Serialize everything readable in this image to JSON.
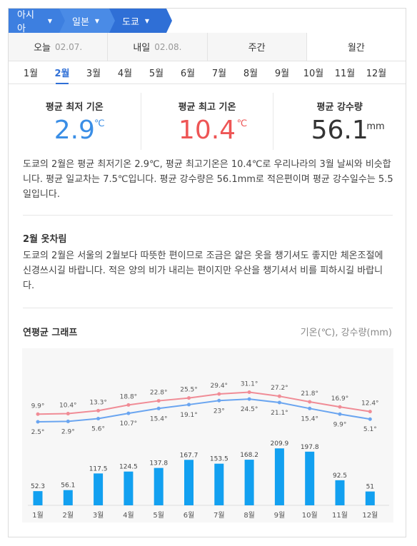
{
  "breadcrumb": [
    {
      "label": "아시아"
    },
    {
      "label": "일본"
    },
    {
      "label": "도쿄"
    }
  ],
  "day_tabs": [
    {
      "label": "오늘",
      "date": "02.07."
    },
    {
      "label": "내일",
      "date": "02.08."
    },
    {
      "label": "주간",
      "date": ""
    },
    {
      "label": "월간",
      "date": ""
    }
  ],
  "months": [
    "1월",
    "2월",
    "3월",
    "4월",
    "5월",
    "6월",
    "7월",
    "8월",
    "9월",
    "10월",
    "11월",
    "12월"
  ],
  "selected_month": "2월",
  "stats": {
    "min": {
      "label": "평균 최저 기온",
      "value": "2.9",
      "unit": "℃"
    },
    "max": {
      "label": "평균 최고 기온",
      "value": "10.4",
      "unit": "℃"
    },
    "rain": {
      "label": "평균 강수량",
      "value": "56.1",
      "unit": "mm"
    }
  },
  "summary": "도쿄의 2월은 평균 최저기온 2.9℃, 평균 최고기온은 10.4℃로 우리나라의 3월 날씨와 비슷합니다. 평균 일교차는 7.5℃입니다. 평균 강수량은 56.1mm로 적은편이며 평균 강수일수는 5.5일입니다.",
  "clothing": {
    "title": "2월 옷차림",
    "text": "도쿄의 2월은 서울의 2월보다 따뜻한 편이므로 조금은 얇은 옷을 챙기셔도 좋지만 체온조절에 신경쓰시길 바랍니다. 적은 양의 비가 내리는 편이지만 우산을 챙기셔서 비를 피하시길 바랍니다."
  },
  "graph": {
    "title": "연평균 그래프",
    "unit_label": "기온(℃), 강수량(mm)"
  },
  "colors": {
    "accent": "#2f6fd6",
    "min_line": "#6aa5f0",
    "max_line": "#f08c96",
    "bar": "#12a0f0"
  },
  "chart_data": {
    "type": "bar",
    "categories": [
      "1월",
      "2월",
      "3월",
      "4월",
      "5월",
      "6월",
      "7월",
      "8월",
      "9월",
      "10월",
      "11월",
      "12월"
    ],
    "series": [
      {
        "name": "최고",
        "type": "line",
        "values": [
          9.9,
          10.4,
          13.3,
          18.8,
          22.8,
          25.5,
          29.4,
          31.1,
          27.2,
          21.8,
          16.9,
          12.4
        ],
        "labels": [
          "9.9°",
          "10.4°",
          "13.3°",
          "18.8°",
          "22.8°",
          "25.5°",
          "29.4°",
          "31.1°",
          "27.2°",
          "21.8°",
          "16.9°",
          "12.4°"
        ]
      },
      {
        "name": "최저",
        "type": "line",
        "values": [
          2.5,
          2.9,
          5.6,
          10.7,
          15.4,
          19.1,
          23,
          24.5,
          21.1,
          15.4,
          9.9,
          5.1
        ],
        "labels": [
          "2.5°",
          "2.9°",
          "5.6°",
          "10.7°",
          "15.4°",
          "19.1°",
          "23°",
          "24.5°",
          "21.1°",
          "15.4°",
          "9.9°",
          "5.1°"
        ]
      },
      {
        "name": "강수량",
        "type": "bar",
        "values": [
          52.3,
          56.1,
          117.5,
          124.5,
          137.8,
          167.7,
          153.5,
          168.2,
          209.9,
          197.8,
          92.5,
          51
        ],
        "labels": [
          "52.3",
          "56.1",
          "117.5",
          "124.5",
          "137.8",
          "167.7",
          "153.5",
          "168.2",
          "209.9",
          "197.8",
          "92.5",
          "51"
        ]
      }
    ]
  }
}
